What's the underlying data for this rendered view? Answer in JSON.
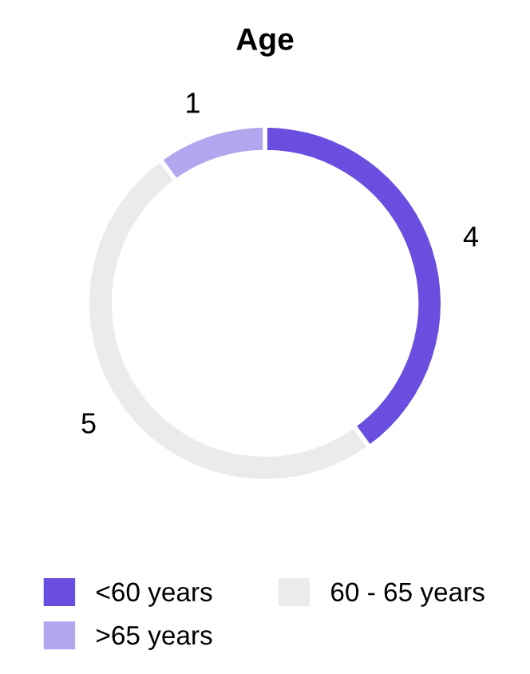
{
  "chart_data": {
    "type": "donut",
    "title": "Age",
    "categories": [
      "<60 years",
      "60 - 65 years",
      ">65 years"
    ],
    "values": [
      4,
      5,
      1
    ],
    "colors": [
      "#6a4ee0",
      "#ebebeb",
      "#b3a6ef"
    ],
    "data_labels": true,
    "legend": "bottom"
  }
}
